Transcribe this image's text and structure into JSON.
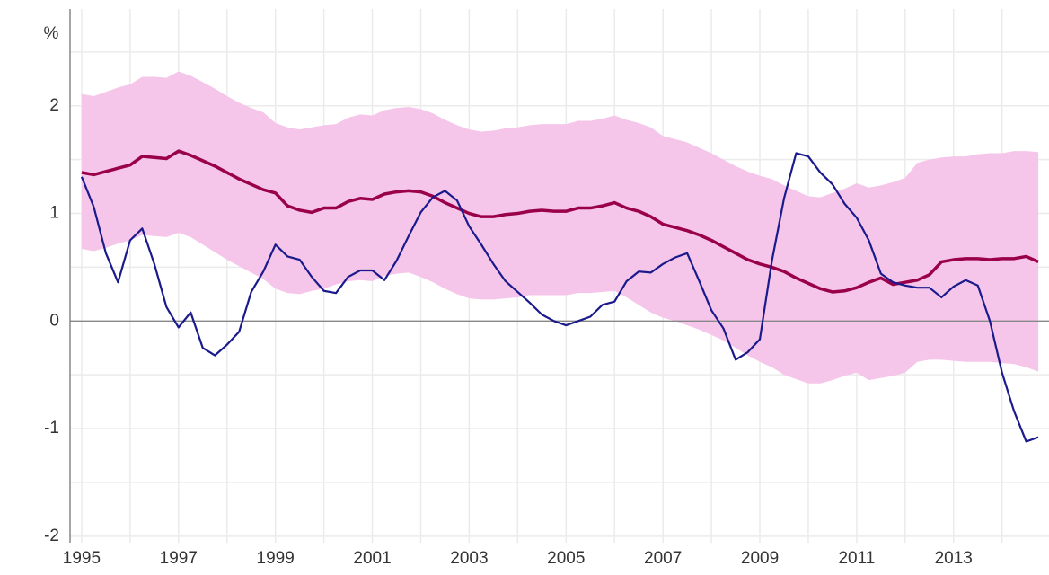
{
  "chart_data": {
    "type": "line",
    "y_label": "%",
    "x": [
      1995,
      1995.25,
      1995.5,
      1995.75,
      1996,
      1996.25,
      1996.5,
      1996.75,
      1997,
      1997.25,
      1997.5,
      1997.75,
      1998,
      1998.25,
      1998.5,
      1998.75,
      1999,
      1999.25,
      1999.5,
      1999.75,
      2000,
      2000.25,
      2000.5,
      2000.75,
      2001,
      2001.25,
      2001.5,
      2001.75,
      2002,
      2002.25,
      2002.5,
      2002.75,
      2003,
      2003.25,
      2003.5,
      2003.75,
      2004,
      2004.25,
      2004.5,
      2004.75,
      2005,
      2005.25,
      2005.5,
      2005.75,
      2006,
      2006.25,
      2006.5,
      2006.75,
      2007,
      2007.25,
      2007.5,
      2007.75,
      2008,
      2008.25,
      2008.5,
      2008.75,
      2009,
      2009.25,
      2009.5,
      2009.75,
      2010,
      2010.25,
      2010.5,
      2010.75,
      2011,
      2011.25,
      2011.5,
      2011.75,
      2012,
      2012.25,
      2012.5,
      2012.75,
      2013,
      2013.25,
      2013.5,
      2013.75,
      2014,
      2014.25,
      2014.5,
      2014.75
    ],
    "band": {
      "color": "#f5c6ea",
      "upper": [
        2.11,
        2.09,
        2.13,
        2.17,
        2.2,
        2.27,
        2.27,
        2.26,
        2.32,
        2.28,
        2.22,
        2.16,
        2.09,
        2.03,
        1.98,
        1.94,
        1.84,
        1.8,
        1.78,
        1.8,
        1.82,
        1.83,
        1.89,
        1.92,
        1.91,
        1.96,
        1.98,
        1.99,
        1.97,
        1.93,
        1.87,
        1.82,
        1.78,
        1.76,
        1.77,
        1.79,
        1.8,
        1.82,
        1.83,
        1.83,
        1.83,
        1.86,
        1.86,
        1.88,
        1.91,
        1.87,
        1.84,
        1.8,
        1.72,
        1.69,
        1.66,
        1.61,
        1.56,
        1.5,
        1.44,
        1.39,
        1.35,
        1.32,
        1.26,
        1.21,
        1.16,
        1.15,
        1.19,
        1.23,
        1.28,
        1.24,
        1.26,
        1.29,
        1.33,
        1.47,
        1.5,
        1.52,
        1.53,
        1.53,
        1.55,
        1.56,
        1.56,
        1.58,
        1.58,
        1.57
      ],
      "lower": [
        0.67,
        0.65,
        0.68,
        0.72,
        0.75,
        0.8,
        0.79,
        0.78,
        0.82,
        0.78,
        0.71,
        0.64,
        0.57,
        0.51,
        0.45,
        0.39,
        0.3,
        0.26,
        0.25,
        0.28,
        0.3,
        0.34,
        0.37,
        0.38,
        0.37,
        0.42,
        0.44,
        0.45,
        0.41,
        0.36,
        0.3,
        0.25,
        0.21,
        0.2,
        0.2,
        0.21,
        0.22,
        0.24,
        0.24,
        0.24,
        0.24,
        0.26,
        0.26,
        0.27,
        0.28,
        0.22,
        0.15,
        0.08,
        0.03,
        0.0,
        -0.04,
        -0.08,
        -0.13,
        -0.18,
        -0.25,
        -0.32,
        -0.38,
        -0.43,
        -0.5,
        -0.54,
        -0.58,
        -0.58,
        -0.55,
        -0.51,
        -0.48,
        -0.55,
        -0.53,
        -0.51,
        -0.48,
        -0.38,
        -0.36,
        -0.36,
        -0.37,
        -0.38,
        -0.38,
        -0.38,
        -0.39,
        -0.4,
        -0.43,
        -0.47
      ]
    },
    "series": [
      {
        "color": "#990049",
        "width": 3.5,
        "values": [
          1.38,
          1.36,
          1.39,
          1.42,
          1.45,
          1.53,
          1.52,
          1.51,
          1.58,
          1.54,
          1.49,
          1.44,
          1.38,
          1.32,
          1.27,
          1.22,
          1.19,
          1.07,
          1.03,
          1.01,
          1.05,
          1.05,
          1.11,
          1.14,
          1.13,
          1.18,
          1.2,
          1.21,
          1.2,
          1.16,
          1.1,
          1.05,
          1.0,
          0.97,
          0.97,
          0.99,
          1.0,
          1.02,
          1.03,
          1.02,
          1.02,
          1.05,
          1.05,
          1.07,
          1.1,
          1.05,
          1.02,
          0.97,
          0.9,
          0.87,
          0.84,
          0.8,
          0.75,
          0.69,
          0.63,
          0.57,
          0.53,
          0.5,
          0.46,
          0.4,
          0.35,
          0.3,
          0.27,
          0.28,
          0.31,
          0.36,
          0.4,
          0.34,
          0.36,
          0.38,
          0.43,
          0.55,
          0.57,
          0.58,
          0.58,
          0.57,
          0.58,
          0.58,
          0.6,
          0.55
        ]
      },
      {
        "color": "#1a1a8c",
        "width": 2.2,
        "values": [
          1.34,
          1.06,
          0.63,
          0.36,
          0.75,
          0.86,
          0.53,
          0.13,
          -0.06,
          0.08,
          -0.25,
          -0.32,
          -0.22,
          -0.1,
          0.27,
          0.46,
          0.71,
          0.6,
          0.57,
          0.41,
          0.28,
          0.26,
          0.41,
          0.47,
          0.47,
          0.38,
          0.56,
          0.79,
          1.01,
          1.15,
          1.21,
          1.12,
          0.88,
          0.71,
          0.53,
          0.37,
          0.27,
          0.17,
          0.06,
          0.0,
          -0.04,
          0.0,
          0.04,
          0.15,
          0.18,
          0.37,
          0.46,
          0.45,
          0.53,
          0.59,
          0.63,
          0.37,
          0.1,
          -0.07,
          -0.36,
          -0.29,
          -0.17,
          0.56,
          1.14,
          1.56,
          1.53,
          1.38,
          1.27,
          1.09,
          0.96,
          0.75,
          0.44,
          0.36,
          0.33,
          0.31,
          0.31,
          0.22,
          0.32,
          0.38,
          0.33,
          0.0,
          -0.48,
          -0.84,
          -1.12,
          -1.08
        ]
      }
    ],
    "xlim": [
      1994.76,
      2014.97
    ],
    "ylim": [
      -2.06,
      2.9
    ],
    "xticks": [
      1995,
      1997,
      1999,
      2001,
      2003,
      2005,
      2007,
      2009,
      2011,
      2013
    ],
    "yticks": [
      -2,
      -1,
      0,
      1,
      2
    ],
    "x_minor_grid": [
      1996,
      1998,
      2000,
      2002,
      2004,
      2006,
      2008,
      2010,
      2012,
      2014
    ],
    "y_minor_grid": [
      -1.5,
      -0.5,
      0.5,
      1.5,
      2.5
    ],
    "grid": true,
    "zero_line": true
  }
}
